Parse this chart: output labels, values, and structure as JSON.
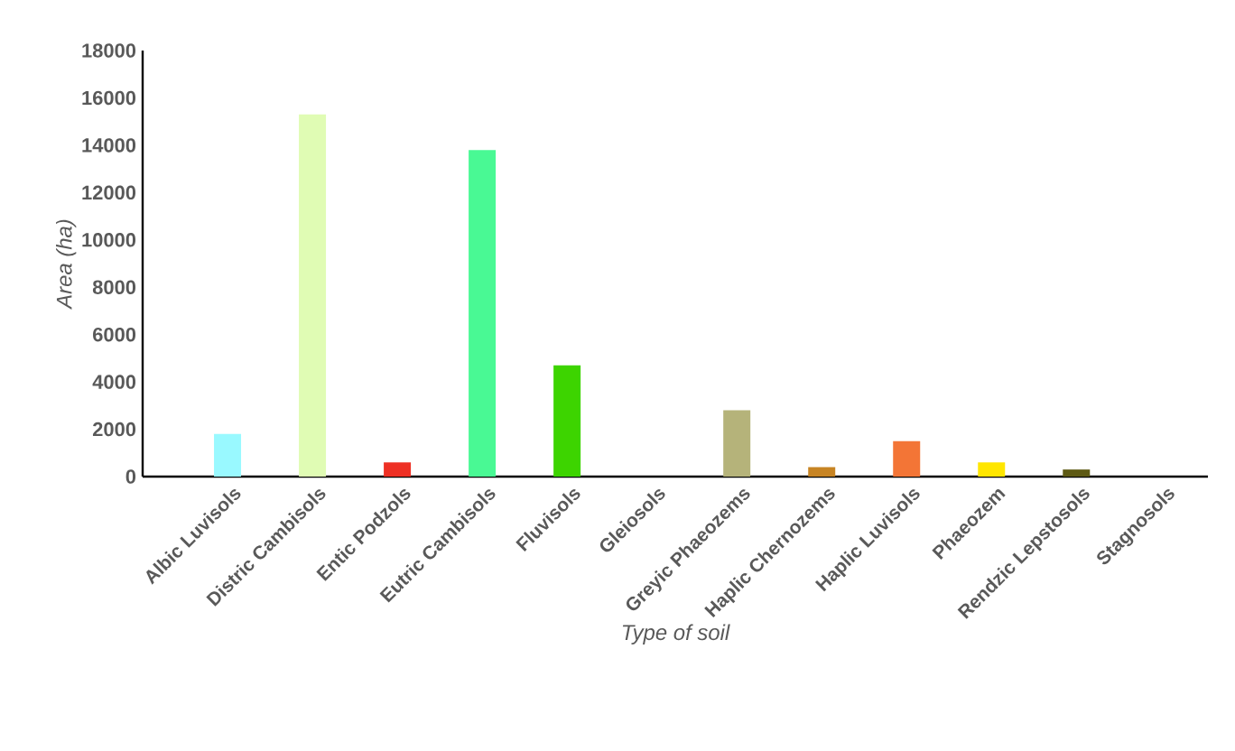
{
  "chart_data": {
    "type": "bar",
    "xlabel": "Type of soil",
    "ylabel": "Area (ha)",
    "categories": [
      "Albic Luvisols",
      "Distric Cambisols",
      "Entic Podzols",
      "Eutric Cambisols",
      "Fluvisols",
      "Gleiosols",
      "Greyic Phaeozems",
      "Haplic Chernozems",
      "Haplic Luvisols",
      "Phaeozem",
      "Rendzic Lepstosols",
      "Stagnosols"
    ],
    "values": [
      1800,
      15300,
      600,
      13800,
      4700,
      0,
      2800,
      400,
      1500,
      600,
      300,
      0
    ],
    "colors": [
      "#99f9ff",
      "#e0fcb4",
      "#ee3024",
      "#49f994",
      "#3dd400",
      "#9e9e9e",
      "#b5b37a",
      "#c78423",
      "#f37536",
      "#ffe600",
      "#5e5a14",
      "#9e9e9e"
    ],
    "ylim": [
      0,
      18000
    ],
    "yticks": [
      0,
      2000,
      4000,
      6000,
      8000,
      10000,
      12000,
      14000,
      16000,
      18000
    ],
    "grid": false
  }
}
